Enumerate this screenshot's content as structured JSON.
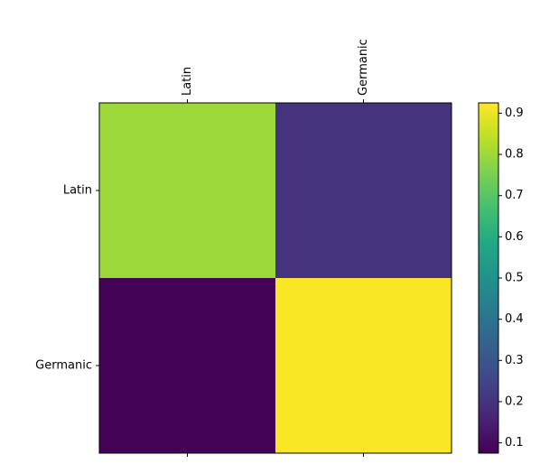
{
  "chart_data": {
    "type": "heatmap",
    "x_categories": [
      "Latin",
      "Germanic"
    ],
    "y_categories": [
      "Latin",
      "Germanic"
    ],
    "values": [
      [
        0.8,
        0.2
      ],
      [
        0.08,
        0.92
      ]
    ],
    "colormap": "viridis",
    "colorbar": {
      "vmin": 0.075,
      "vmax": 0.925,
      "ticks": [
        0.1,
        0.2,
        0.3,
        0.4,
        0.5,
        0.6,
        0.7,
        0.8,
        0.9
      ],
      "tick_labels": [
        "0.1",
        "0.2",
        "0.3",
        "0.4",
        "0.5",
        "0.6",
        "0.7",
        "0.8",
        "0.9"
      ]
    },
    "x_tick_position": "top",
    "x_tick_rotation": 90,
    "grid": false
  }
}
